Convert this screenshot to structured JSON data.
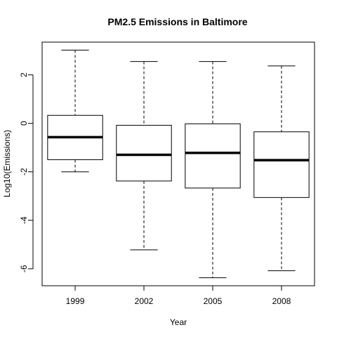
{
  "chart_data": {
    "type": "box",
    "title": "PM2.5 Emissions in Baltimore",
    "xlabel": "Year",
    "ylabel": "Log10(Emissions)",
    "ylim": [
      -6.7,
      3.35
    ],
    "yticks": [
      2,
      0,
      -2,
      -4,
      -6
    ],
    "grid": false,
    "legend": "none",
    "categories": [
      "1999",
      "2002",
      "2005",
      "2008"
    ],
    "boxes": [
      {
        "category": "1999",
        "whisker_low": -2.0,
        "q1": -1.5,
        "median": -0.57,
        "q3": 0.33,
        "whisker_high": 3.02
      },
      {
        "category": "2002",
        "whisker_low": -5.22,
        "q1": -2.38,
        "median": -1.3,
        "q3": -0.08,
        "whisker_high": 2.55
      },
      {
        "category": "2005",
        "whisker_low": -6.37,
        "q1": -2.67,
        "median": -1.22,
        "q3": -0.02,
        "whisker_high": 2.55
      },
      {
        "category": "2008",
        "whisker_low": -6.08,
        "q1": -3.06,
        "median": -1.52,
        "q3": -0.35,
        "whisker_high": 2.37
      }
    ]
  }
}
